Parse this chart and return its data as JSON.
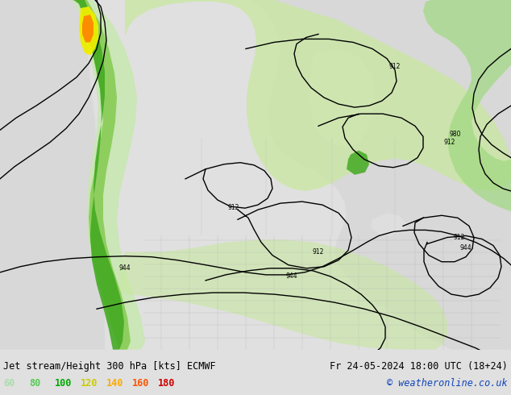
{
  "title_left": "Jet stream/Height 300 hPa [kts] ECMWF",
  "title_right": "Fr 24-05-2024 18:00 UTC (18+24)",
  "copyright": "© weatheronline.co.uk",
  "legend_values": [
    "60",
    "80",
    "100",
    "120",
    "140",
    "160",
    "180"
  ],
  "legend_colors": [
    "#aaffaa",
    "#55dd55",
    "#00bb00",
    "#cccc00",
    "#ffaa00",
    "#ff5500",
    "#cc0000"
  ],
  "bg_color": "#e0e0e0",
  "sea_color": "#e8e8e8",
  "land_color": "#d8d8d8",
  "jet_light_green": "#cceecc",
  "jet_mid_green": "#88cc88",
  "jet_dark_green": "#22aa22",
  "jet_yellow": "#dddd00",
  "jet_orange": "#ff8800",
  "figsize": [
    6.34,
    4.9
  ],
  "dpi": 100,
  "title_font_size": 8.5,
  "legend_font_size": 8.5,
  "contour_label_fontsize": 5.5,
  "contour_linewidth": 1.0
}
